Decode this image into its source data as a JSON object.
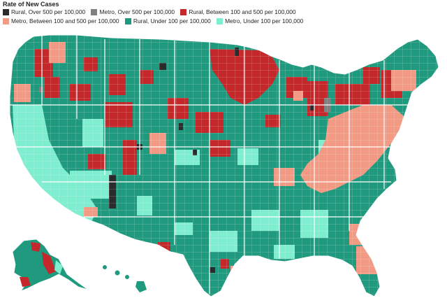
{
  "title": "Rate of New Cases",
  "legend": [
    {
      "label": "Rural, Over 500 per 100,000",
      "color": "#2b2b2b"
    },
    {
      "label": "Metro, Over 500 per 100,000",
      "color": "#808080"
    },
    {
      "label": "Rural, Between 100 and 500 per 100,000",
      "color": "#c4282a"
    },
    {
      "label": "Metro, Between 100 and 500 per 100,000",
      "color": "#f39a85"
    },
    {
      "label": "Rural, Under 100 per 100,000",
      "color": "#1f9a7e"
    },
    {
      "label": "Metro, Under 100 per 100,000",
      "color": "#7fedd0"
    }
  ],
  "map": {
    "type": "US county choropleth",
    "base_color": "#1f9a7e",
    "border_color": "#ffffff"
  }
}
